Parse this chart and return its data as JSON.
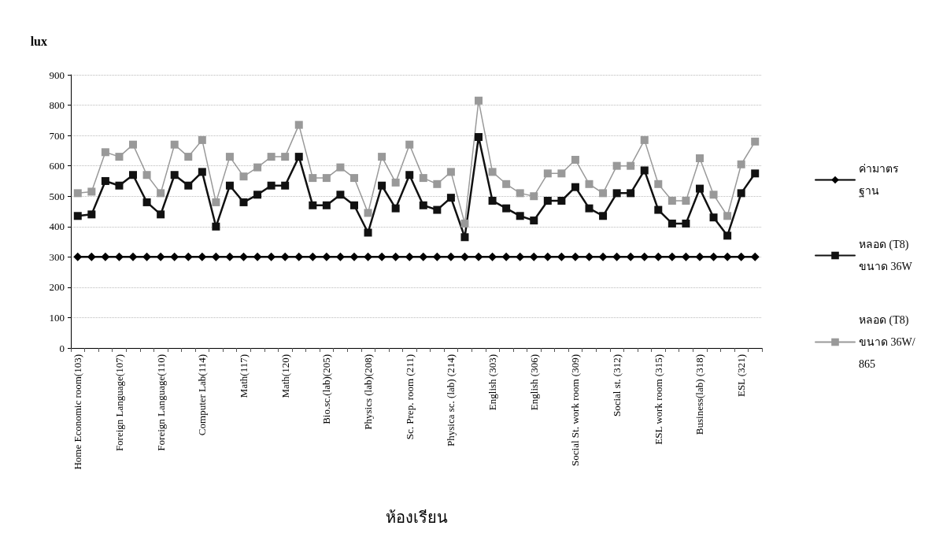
{
  "chart_data": {
    "type": "line",
    "xlabel": "ห้องเรียน",
    "ylabel": "lux",
    "categories": [
      "Home Economic room(103)",
      null,
      null,
      "Foreign Language(107)",
      null,
      null,
      "Foreign Language(110)",
      null,
      null,
      "Computer Lab(114)",
      null,
      null,
      "Math(117)",
      null,
      null,
      "Math(120)",
      null,
      null,
      "Bio.sc.(lab)(205)",
      null,
      null,
      "Physics (lab)(208)",
      null,
      null,
      "Sc. Prep. room (211)",
      null,
      null,
      "Physica sc. (lab) (214)",
      null,
      null,
      "English (303)",
      null,
      null,
      "English (306)",
      null,
      null,
      "Social St. work room (309)",
      null,
      null,
      "Social st. (312)",
      null,
      null,
      "ESL work room (315)",
      null,
      null,
      "Business(lab) (318)",
      null,
      null,
      "ESL (321)",
      null
    ],
    "series": [
      {
        "name": "ค่ามาตรฐาน",
        "color": "#000000",
        "marker": "diamond",
        "values": [
          300,
          300,
          300,
          300,
          300,
          300,
          300,
          300,
          300,
          300,
          300,
          300,
          300,
          300,
          300,
          300,
          300,
          300,
          300,
          300,
          300,
          300,
          300,
          300,
          300,
          300,
          300,
          300,
          300,
          300,
          300,
          300,
          300,
          300,
          300,
          300,
          300,
          300,
          300,
          300,
          300,
          300,
          300,
          300,
          300,
          300,
          300,
          300,
          300,
          300
        ]
      },
      {
        "name": "หลอด (T8) ขนาด 36W",
        "color": "#111111",
        "marker": "square",
        "values": [
          435,
          440,
          550,
          535,
          570,
          480,
          440,
          570,
          535,
          580,
          400,
          535,
          480,
          505,
          535,
          535,
          630,
          470,
          470,
          505,
          470,
          380,
          535,
          460,
          570,
          470,
          455,
          495,
          365,
          695,
          485,
          460,
          435,
          420,
          485,
          485,
          530,
          460,
          435,
          510,
          510,
          585,
          455,
          410,
          410,
          525,
          430,
          370,
          510,
          575
        ]
      },
      {
        "name": "หลอด (T8) ขนาด 36W/865",
        "color": "#999999",
        "marker": "square",
        "values": [
          510,
          515,
          645,
          630,
          670,
          570,
          510,
          670,
          630,
          685,
          480,
          630,
          565,
          595,
          630,
          630,
          735,
          560,
          560,
          595,
          560,
          445,
          630,
          545,
          670,
          560,
          540,
          580,
          410,
          815,
          580,
          540,
          510,
          500,
          575,
          575,
          620,
          540,
          510,
          600,
          600,
          685,
          540,
          485,
          485,
          625,
          505,
          435,
          605,
          680
        ]
      }
    ],
    "ylim": [
      0,
      900
    ],
    "yticks": [
      0,
      100,
      200,
      300,
      400,
      500,
      600,
      700,
      800,
      900
    ],
    "grid": "y",
    "line_style": "solid",
    "legend": "right"
  }
}
